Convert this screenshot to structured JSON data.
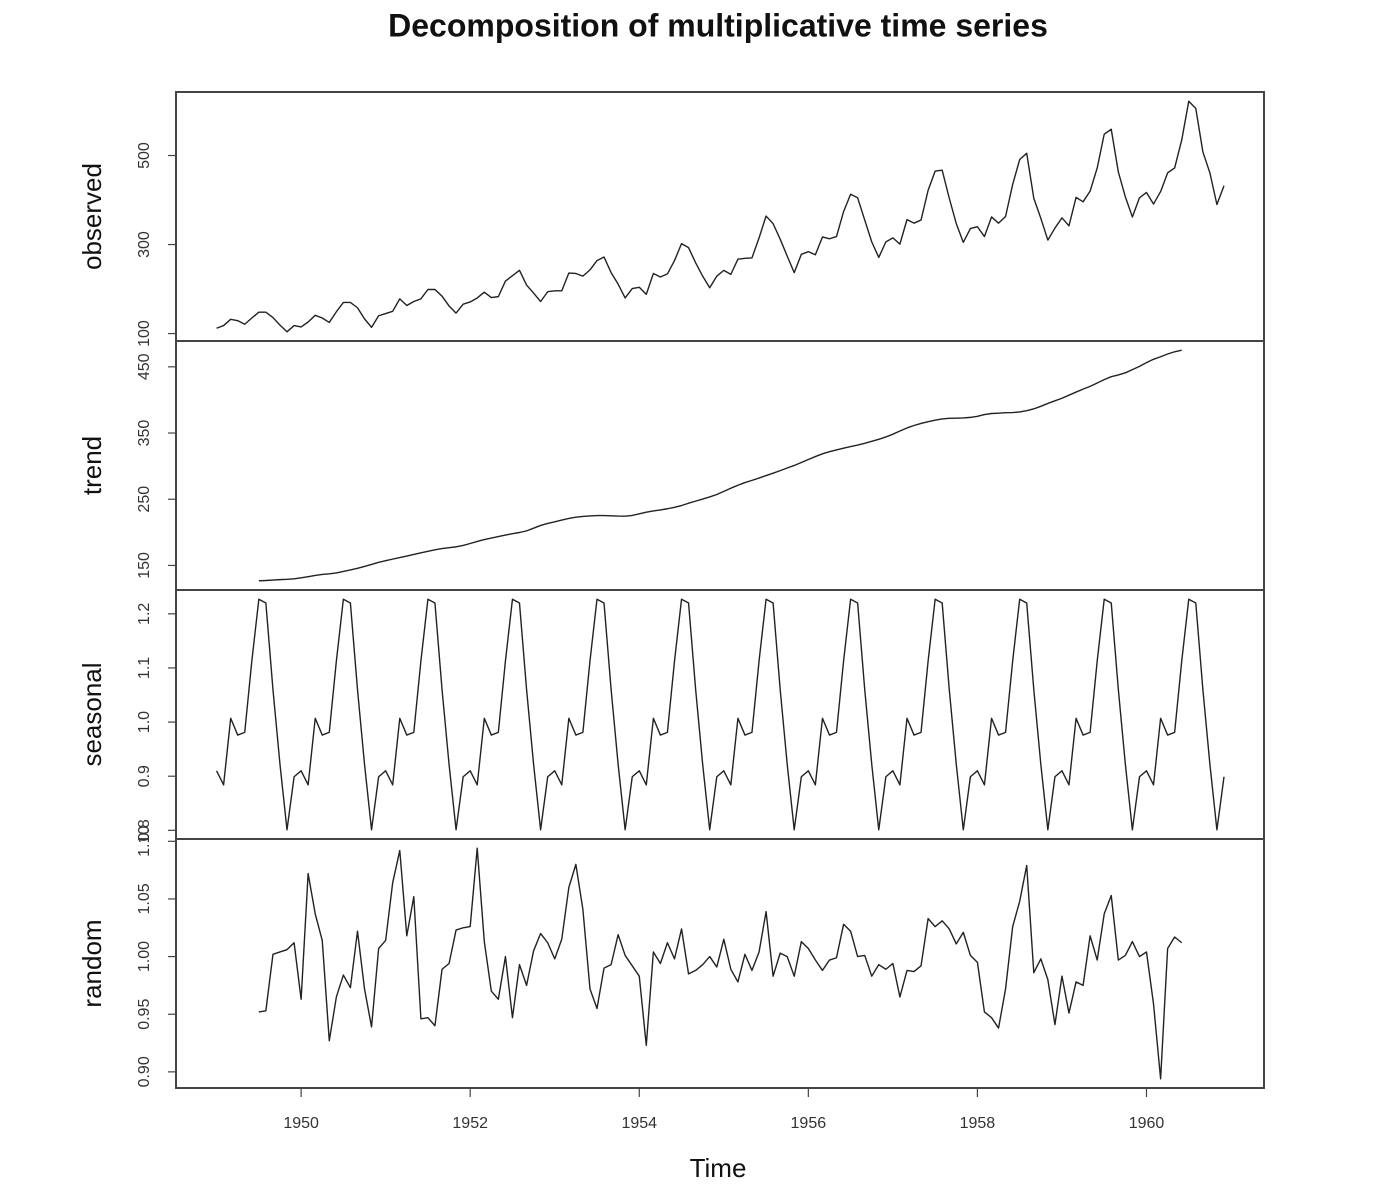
{
  "chart_data": {
    "type": "line",
    "title": "Decomposition of multiplicative time series",
    "xlabel": "Time",
    "xlim": [
      1948.52,
      1961.39
    ],
    "xticks": [
      1950,
      1952,
      1954,
      1956,
      1958,
      1960
    ],
    "x": [
      1949,
      1949.083,
      1949.167,
      1949.25,
      1949.333,
      1949.417,
      1949.5,
      1949.583,
      1949.667,
      1949.75,
      1949.833,
      1949.917,
      1950,
      1950.083,
      1950.167,
      1950.25,
      1950.333,
      1950.417,
      1950.5,
      1950.583,
      1950.667,
      1950.75,
      1950.833,
      1950.917,
      1951,
      1951.083,
      1951.167,
      1951.25,
      1951.333,
      1951.417,
      1951.5,
      1951.583,
      1951.667,
      1951.75,
      1951.833,
      1951.917,
      1952,
      1952.083,
      1952.167,
      1952.25,
      1952.333,
      1952.417,
      1952.5,
      1952.583,
      1952.667,
      1952.75,
      1952.833,
      1952.917,
      1953,
      1953.083,
      1953.167,
      1953.25,
      1953.333,
      1953.417,
      1953.5,
      1953.583,
      1953.667,
      1953.75,
      1953.833,
      1953.917,
      1954,
      1954.083,
      1954.167,
      1954.25,
      1954.333,
      1954.417,
      1954.5,
      1954.583,
      1954.667,
      1954.75,
      1954.833,
      1954.917,
      1955,
      1955.083,
      1955.167,
      1955.25,
      1955.333,
      1955.417,
      1955.5,
      1955.583,
      1955.667,
      1955.75,
      1955.833,
      1955.917,
      1956,
      1956.083,
      1956.167,
      1956.25,
      1956.333,
      1956.417,
      1956.5,
      1956.583,
      1956.667,
      1956.75,
      1956.833,
      1956.917,
      1957,
      1957.083,
      1957.167,
      1957.25,
      1957.333,
      1957.417,
      1957.5,
      1957.583,
      1957.667,
      1957.75,
      1957.833,
      1957.917,
      1958,
      1958.083,
      1958.167,
      1958.25,
      1958.333,
      1958.417,
      1958.5,
      1958.583,
      1958.667,
      1958.75,
      1958.833,
      1958.917,
      1959,
      1959.083,
      1959.167,
      1959.25,
      1959.333,
      1959.417,
      1959.5,
      1959.583,
      1959.667,
      1959.75,
      1959.833,
      1959.917,
      1960,
      1960.083,
      1960.167,
      1960.25,
      1960.333,
      1960.417,
      1960.5,
      1960.583,
      1960.667,
      1960.75,
      1960.833,
      1960.917
    ],
    "panels": [
      {
        "ylabel": "observed",
        "ylim": [
          83.3,
          642.7
        ],
        "yticks": [
          100,
          300,
          500
        ],
        "values": [
          112,
          118,
          132,
          129,
          121,
          135,
          148,
          148,
          136,
          119,
          104,
          118,
          115,
          126,
          141,
          135,
          125,
          149,
          170,
          170,
          158,
          133,
          114,
          140,
          145,
          150,
          178,
          163,
          172,
          178,
          199,
          199,
          184,
          162,
          146,
          166,
          171,
          180,
          193,
          181,
          183,
          218,
          230,
          242,
          209,
          191,
          172,
          194,
          196,
          196,
          236,
          235,
          229,
          243,
          264,
          272,
          237,
          211,
          180,
          201,
          204,
          188,
          235,
          227,
          234,
          264,
          302,
          293,
          259,
          229,
          203,
          229,
          242,
          233,
          267,
          269,
          270,
          315,
          364,
          347,
          312,
          274,
          237,
          278,
          284,
          277,
          317,
          313,
          318,
          374,
          413,
          405,
          355,
          306,
          271,
          306,
          315,
          301,
          356,
          348,
          355,
          422,
          465,
          467,
          404,
          347,
          305,
          336,
          340,
          318,
          362,
          348,
          363,
          435,
          491,
          505,
          404,
          359,
          310,
          337,
          360,
          342,
          406,
          396,
          420,
          472,
          548,
          559,
          463,
          407,
          362,
          405,
          417,
          391,
          419,
          461,
          472,
          535,
          622,
          606,
          508,
          461,
          390,
          432
        ]
      },
      {
        "ylabel": "trend",
        "ylim": [
          112.9,
          489.0
        ],
        "yticks": [
          150,
          250,
          350,
          450
        ],
        "values": [
          null,
          null,
          null,
          null,
          null,
          null,
          126.79,
          127.25,
          127.96,
          128.58,
          129.0,
          129.75,
          131.25,
          133.08,
          134.92,
          136.42,
          137.42,
          138.75,
          140.92,
          143.17,
          145.71,
          148.42,
          151.54,
          154.71,
          157.13,
          159.54,
          161.83,
          164.13,
          166.67,
          169.08,
          171.25,
          173.58,
          175.46,
          176.83,
          178.04,
          180.17,
          183.13,
          186.21,
          189.04,
          191.29,
          193.58,
          195.83,
          198.04,
          199.75,
          202.21,
          206.25,
          210.42,
          213.38,
          215.83,
          218.5,
          220.92,
          222.92,
          224.08,
          224.71,
          225.33,
          225.33,
          224.96,
          224.58,
          224.46,
          225.54,
          228.0,
          230.46,
          232.25,
          233.92,
          235.63,
          237.75,
          240.5,
          243.96,
          247.17,
          250.25,
          253.5,
          257.13,
          261.83,
          266.67,
          271.13,
          275.21,
          278.5,
          281.96,
          285.75,
          289.33,
          293.25,
          297.17,
          301.0,
          305.46,
          309.96,
          314.42,
          318.63,
          321.75,
          324.5,
          327.08,
          329.54,
          331.83,
          334.46,
          337.54,
          340.54,
          344.08,
          348.25,
          353.0,
          357.63,
          361.38,
          364.5,
          367.17,
          369.46,
          371.21,
          372.17,
          372.42,
          372.75,
          373.63,
          375.25,
          377.92,
          379.5,
          380.0,
          380.71,
          380.96,
          381.83,
          383.67,
          386.5,
          390.33,
          394.71,
          398.63,
          402.54,
          407.17,
          411.88,
          416.33,
          420.5,
          425.5,
          430.71,
          435.13,
          437.71,
          440.96,
          445.83,
          450.63,
          456.33,
          461.38,
          465.21,
          469.33,
          472.75,
          475.04,
          null,
          null,
          null,
          null,
          null,
          null
        ]
      },
      {
        "ylabel": "seasonal",
        "ylim": [
          0.784,
          1.244
        ],
        "yticks": [
          0.8,
          0.9,
          {
            "value": 1,
            "label": "1.0"
          },
          1.1,
          1.2
        ],
        "values": [
          0.91,
          0.884,
          1.007,
          0.976,
          0.981,
          1.113,
          1.227,
          1.22,
          1.06,
          0.922,
          0.801,
          0.899,
          0.91,
          0.884,
          1.007,
          0.976,
          0.981,
          1.113,
          1.227,
          1.22,
          1.06,
          0.922,
          0.801,
          0.899,
          0.91,
          0.884,
          1.007,
          0.976,
          0.981,
          1.113,
          1.227,
          1.22,
          1.06,
          0.922,
          0.801,
          0.899,
          0.91,
          0.884,
          1.007,
          0.976,
          0.981,
          1.113,
          1.227,
          1.22,
          1.06,
          0.922,
          0.801,
          0.899,
          0.91,
          0.884,
          1.007,
          0.976,
          0.981,
          1.113,
          1.227,
          1.22,
          1.06,
          0.922,
          0.801,
          0.899,
          0.91,
          0.884,
          1.007,
          0.976,
          0.981,
          1.113,
          1.227,
          1.22,
          1.06,
          0.922,
          0.801,
          0.899,
          0.91,
          0.884,
          1.007,
          0.976,
          0.981,
          1.113,
          1.227,
          1.22,
          1.06,
          0.922,
          0.801,
          0.899,
          0.91,
          0.884,
          1.007,
          0.976,
          0.981,
          1.113,
          1.227,
          1.22,
          1.06,
          0.922,
          0.801,
          0.899,
          0.91,
          0.884,
          1.007,
          0.976,
          0.981,
          1.113,
          1.227,
          1.22,
          1.06,
          0.922,
          0.801,
          0.899,
          0.91,
          0.884,
          1.007,
          0.976,
          0.981,
          1.113,
          1.227,
          1.22,
          1.06,
          0.922,
          0.801,
          0.899,
          0.91,
          0.884,
          1.007,
          0.976,
          0.981,
          1.113,
          1.227,
          1.22,
          1.06,
          0.922,
          0.801,
          0.899,
          0.91,
          0.884,
          1.007,
          0.976,
          0.981,
          1.113,
          1.227,
          1.22,
          1.06,
          0.922,
          0.801,
          0.899
        ]
      },
      {
        "ylabel": "random",
        "ylim": [
          0.886,
          1.102
        ],
        "yticks": [
          {
            "value": 0.9,
            "label": "0.90"
          },
          0.95,
          {
            "value": 1,
            "label": "1.00"
          },
          1.05,
          {
            "value": 1.1,
            "label": "1.10"
          }
        ],
        "values": [
          null,
          null,
          null,
          null,
          null,
          null,
          0.952,
          0.953,
          1.002,
          1.004,
          1.006,
          1.012,
          0.963,
          1.072,
          1.037,
          1.014,
          0.927,
          0.965,
          0.984,
          0.973,
          1.022,
          0.972,
          0.939,
          1.007,
          1.014,
          1.064,
          1.092,
          1.018,
          1.052,
          0.946,
          0.947,
          0.94,
          0.989,
          0.994,
          1.023,
          1.025,
          1.026,
          1.094,
          1.013,
          0.97,
          0.963,
          1.0,
          0.947,
          0.993,
          0.975,
          1.005,
          1.02,
          1.012,
          0.998,
          1.015,
          1.06,
          1.08,
          1.041,
          0.972,
          0.955,
          0.99,
          0.993,
          1.019,
          1.001,
          0.992,
          0.983,
          0.923,
          1.004,
          0.994,
          1.012,
          0.998,
          1.024,
          0.985,
          0.988,
          0.993,
          1.0,
          0.991,
          1.015,
          0.989,
          0.978,
          1.002,
          0.988,
          1.004,
          1.039,
          0.983,
          1.003,
          1.0,
          0.983,
          1.013,
          1.007,
          0.997,
          0.988,
          0.997,
          0.999,
          1.028,
          1.022,
          1.0,
          1.001,
          0.983,
          0.993,
          0.989,
          0.994,
          0.965,
          0.988,
          0.987,
          0.992,
          1.033,
          1.026,
          1.031,
          1.024,
          1.011,
          1.021,
          1.001,
          0.995,
          0.952,
          0.947,
          0.938,
          0.972,
          1.026,
          1.048,
          1.079,
          0.986,
          0.998,
          0.98,
          0.941,
          0.983,
          0.951,
          0.978,
          0.975,
          1.018,
          0.997,
          1.037,
          1.053,
          0.997,
          1.001,
          1.013,
          1.0,
          1.004,
          0.959,
          0.894,
          1.007,
          1.017,
          1.012,
          null,
          null,
          null,
          null,
          null,
          null
        ]
      }
    ]
  }
}
